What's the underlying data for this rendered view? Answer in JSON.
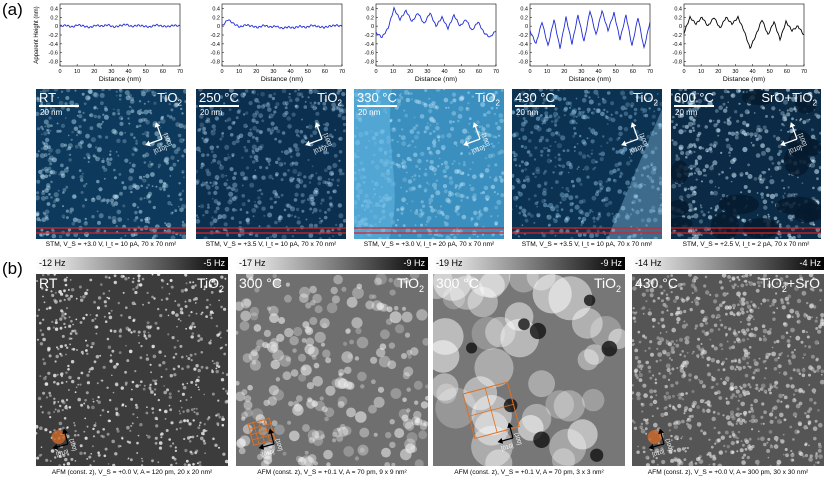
{
  "label_a": "(a)",
  "label_b": "(b)",
  "plot_ylabel": "Apparent Height (nm)",
  "plot_xlabel": "Distance (nm)",
  "plot_xticks": [
    "0",
    "10",
    "20",
    "30",
    "40",
    "50",
    "60",
    "70"
  ],
  "plot_yticks": [
    "0.4",
    "0.2",
    "0",
    "-0.2",
    "-0.4",
    "-0.6",
    "-0.8"
  ],
  "chart_data": [
    {
      "type": "line",
      "series": [
        {
          "values": [
            0.0,
            0.02,
            -0.02,
            0.03,
            0.0,
            -0.03,
            0.02,
            0.0,
            0.03,
            -0.02,
            0.01,
            0.04,
            -0.01,
            0.02,
            0.0,
            -0.02,
            0.03,
            0.0,
            -0.01,
            0.02,
            0.0
          ]
        }
      ],
      "x_range": [
        0,
        70
      ],
      "ylim": [
        -0.9,
        0.5
      ],
      "color": "#1f2bd6"
    },
    {
      "type": "line",
      "series": [
        {
          "values": [
            0.0,
            0.15,
            0.05,
            -0.02,
            0.03,
            0.0,
            -0.03,
            0.02,
            -0.02,
            0.0,
            -0.05,
            -0.02,
            -0.04,
            0.0,
            -0.03,
            0.02,
            -0.01,
            -0.03,
            0.0,
            0.02,
            0.0
          ]
        }
      ],
      "x_range": [
        0,
        70
      ],
      "ylim": [
        -0.9,
        0.5
      ],
      "color": "#1f2bd6"
    },
    {
      "type": "line",
      "series": [
        {
          "values": [
            -0.15,
            -0.25,
            -0.05,
            0.4,
            0.15,
            0.35,
            0.1,
            0.3,
            0.05,
            0.3,
            0.0,
            0.2,
            -0.05,
            0.25,
            0.0,
            0.15,
            -0.1,
            0.1,
            -0.15,
            -0.25,
            -0.1
          ]
        }
      ],
      "x_range": [
        0,
        70
      ],
      "ylim": [
        -0.9,
        0.5
      ],
      "color": "#1f2bd6"
    },
    {
      "type": "line",
      "series": [
        {
          "values": [
            -0.1,
            -0.4,
            0.1,
            -0.45,
            0.15,
            -0.5,
            0.2,
            -0.4,
            0.25,
            -0.35,
            0.35,
            -0.2,
            0.35,
            -0.1,
            0.3,
            -0.3,
            0.25,
            -0.45,
            0.2,
            -0.5,
            0.1
          ]
        }
      ],
      "x_range": [
        0,
        70
      ],
      "ylim": [
        -0.9,
        0.5
      ],
      "color": "#1f2bd6"
    },
    {
      "type": "line",
      "series": [
        {
          "values": [
            -0.15,
            0.2,
            0.05,
            0.2,
            0.0,
            0.2,
            -0.05,
            0.2,
            0.05,
            0.2,
            -0.1,
            -0.5,
            -0.2,
            0.15,
            -0.2,
            0.1,
            -0.3,
            0.1,
            -0.1,
            0.0,
            -0.2
          ]
        }
      ],
      "x_range": [
        0,
        70
      ],
      "ylim": [
        -0.9,
        0.5
      ],
      "color": "#000000"
    }
  ],
  "stm": [
    {
      "temp": "RT",
      "phase": "TiO",
      "sub": "2",
      "scale": "20 nm",
      "caption": "STM, V_S = +3.0 V, I_t = 10 pA, 70 x 70 nm²",
      "base": "#0d3a5c",
      "dot": "#cfeeff",
      "fill": 0.5
    },
    {
      "temp": "250 °C",
      "phase": "TiO",
      "sub": "2",
      "scale": "20 nm",
      "caption": "STM, V_S = +3.5 V, I_t = 10 pA, 70 x 70 nm²",
      "base": "#0b2f4f",
      "dot": "#bfe4ff",
      "fill": 0.45
    },
    {
      "temp": "330 °C",
      "phase": "TiO",
      "sub": "2",
      "scale": "20 nm",
      "caption": "STM, V_S = +3.0 V, I_t = 20 pA, 70 x 70 nm²",
      "base": "#3a8fbf",
      "dot": "#b8e2f7",
      "fill": 0.55
    },
    {
      "temp": "430 °C",
      "phase": "TiO",
      "sub": "2",
      "scale": "20 nm",
      "caption": "STM, V_S = +3.5 V, I_t = 10 pA, 70 x 70 nm²",
      "base": "#0c3252",
      "dot": "#9fd4f5",
      "fill": 0.5
    },
    {
      "temp": "600 °C",
      "phase": "SrO+TiO",
      "sub": "2",
      "scale": "20 nm",
      "caption": "STM, V_S = +2.5 V, I_t = 2 pA, 70 x 70 nm²",
      "base": "#0a2a46",
      "dot": "#d6f1ff",
      "fill": 0.6
    }
  ],
  "afm": [
    {
      "hz_left": "-12 Hz",
      "hz_right": "-5 Hz",
      "temp": "RT",
      "phase": "TiO",
      "sub": "2",
      "caption": "AFM (const. z), V_S = +0.0 V, A = 120 pm, 20 x 20 nm²"
    },
    {
      "hz_left": "-17 Hz",
      "hz_right": "-9 Hz",
      "temp": "300 °C",
      "phase": "TiO",
      "sub": "2",
      "caption": "AFM (const. z), V_S = +0.1 V, A = 70 pm, 9 x 9 nm²"
    },
    {
      "hz_left": "-19 Hz",
      "hz_right": "-9 Hz",
      "temp": "300 °C",
      "phase": "TiO",
      "sub": "2",
      "caption": "AFM (const. z), V_S = +0.1 V, A = 70 pm, 3 x 3 nm²"
    },
    {
      "hz_left": "-14 Hz",
      "hz_right": "-4 Hz",
      "temp": "430 °C",
      "phase": "TiO",
      "sub": "2",
      "phase_tail": "+SrO",
      "caption": "AFM (const. z), V_S = +0.0 V, A = 300 pm, 30 x 30 nm²"
    }
  ],
  "dir_labels": {
    "a": "[010]",
    "b": "[100]"
  }
}
